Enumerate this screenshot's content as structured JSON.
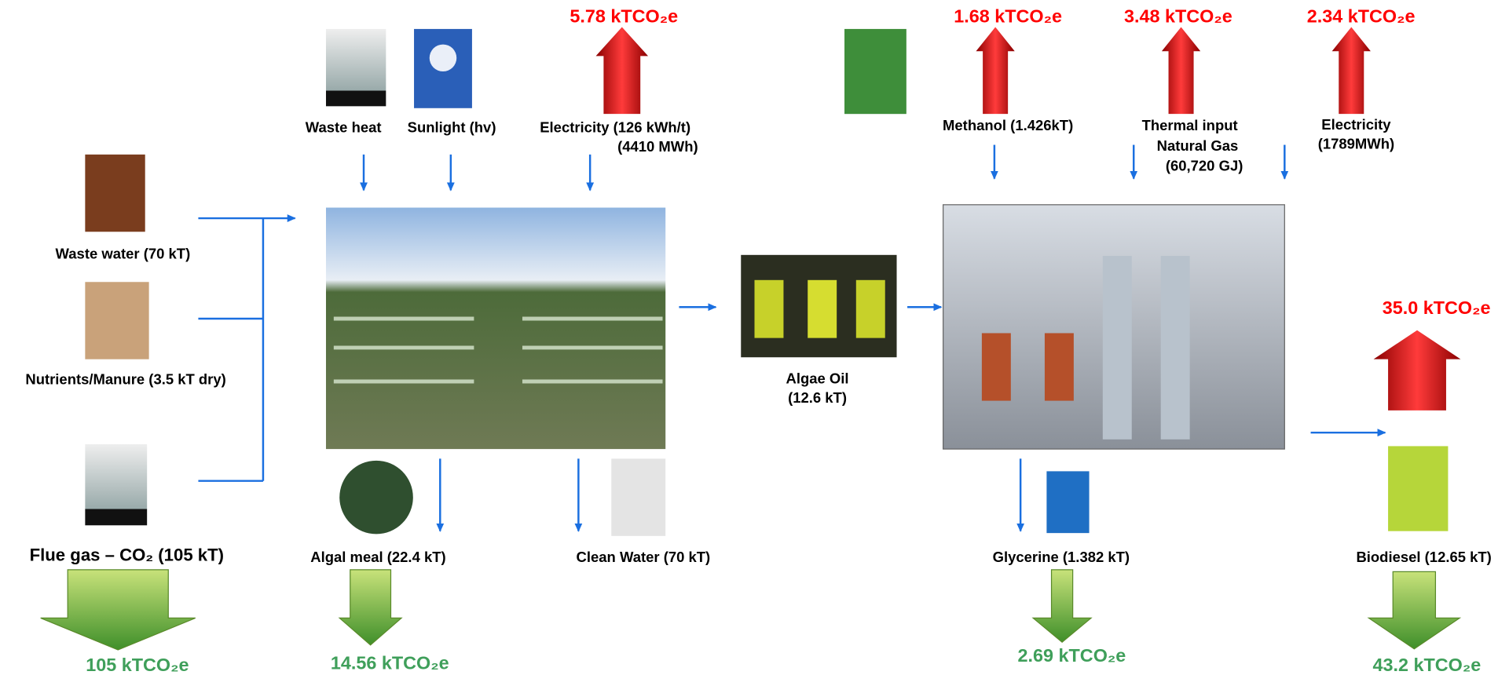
{
  "nodes": [
    {
      "lines": [
        "Waste heat"
      ]
    },
    {
      "lines": [
        "Sunlight (hv)"
      ]
    },
    {
      "lines": [
        "Electricity (126 kWh/t)",
        "(4410 MWh)"
      ]
    },
    {
      "lines": [
        "Methanol (1.426kT)"
      ]
    },
    {
      "lines": [
        "Thermal input",
        "Natural Gas",
        "(60,720 GJ)"
      ]
    },
    {
      "lines": [
        "Electricity",
        "(1789MWh)"
      ]
    },
    {
      "lines": [
        "Waste water (70 kT)"
      ]
    },
    {
      "lines": [
        "Nutrients/Manure (3.5 kT dry)"
      ]
    },
    {
      "lines": [
        "Flue gas – CO₂ (105 kT)"
      ]
    },
    {
      "lines": [
        "Algae Oil",
        "(12.6 kT)"
      ]
    },
    {
      "lines": [
        "Algal meal (22.4 kT)"
      ]
    },
    {
      "lines": [
        "Clean Water (70 kT)"
      ]
    },
    {
      "lines": [
        "Glycerine (1.382 kT)"
      ]
    },
    {
      "lines": [
        "Biodiesel (12.65 kT)"
      ]
    }
  ],
  "emissions": [
    "5.78 kTCO₂e",
    "1.68 kTCO₂e",
    "3.48 kTCO₂e",
    "2.34 kTCO₂e",
    "35.0 kTCO₂e"
  ],
  "savings": [
    "105 kTCO₂e",
    "14.56 kTCO₂e",
    "2.69 kTCO₂e",
    "43.2 kTCO₂e"
  ]
}
